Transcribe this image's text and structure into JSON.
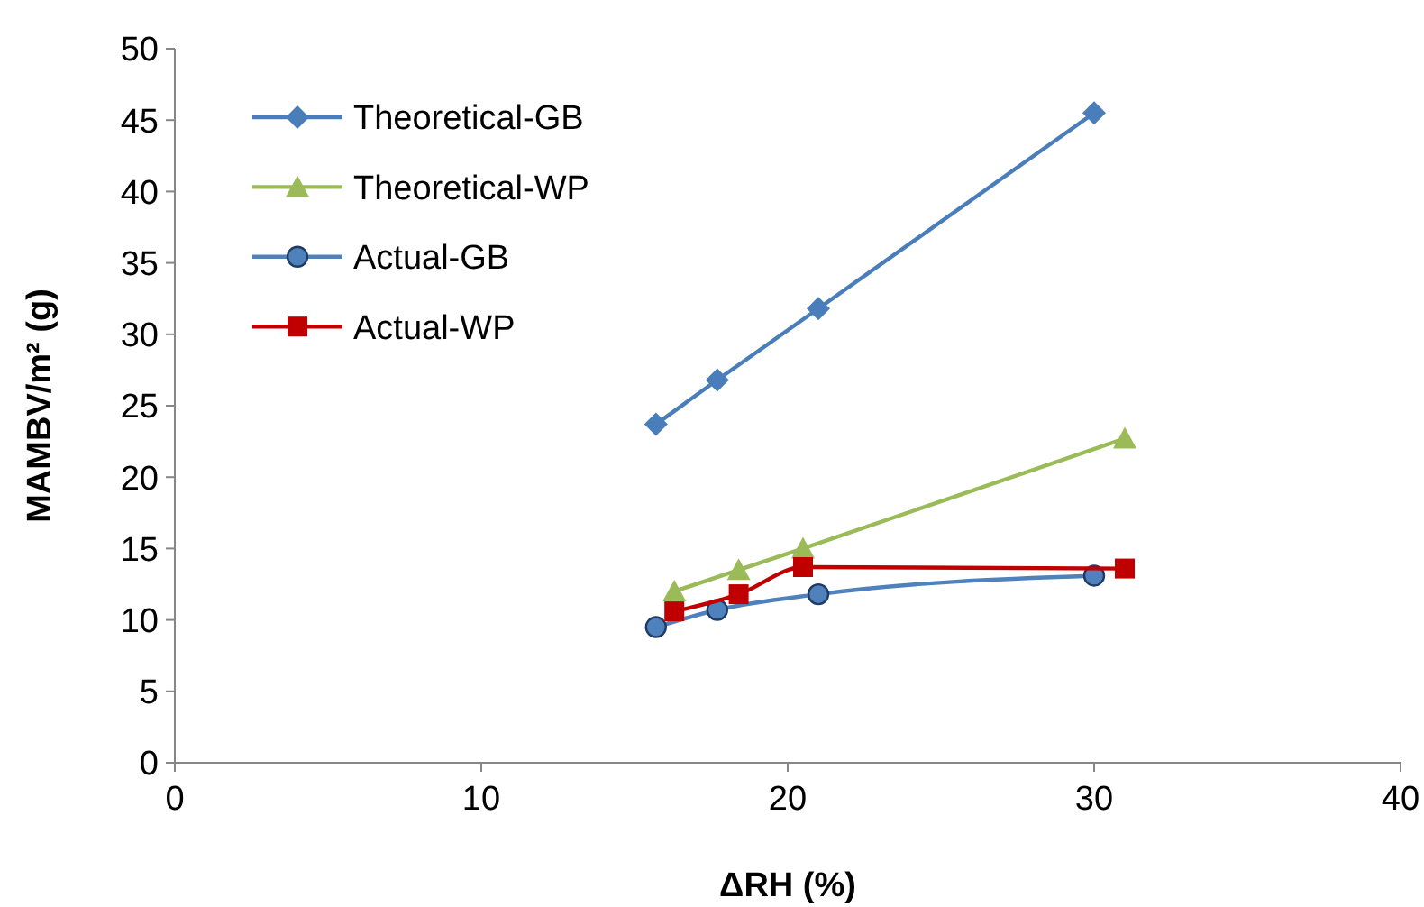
{
  "chart_data": {
    "type": "line",
    "xlabel": "ΔRH (%)",
    "ylabel": "MAMBV/m² (g)",
    "xlim": [
      0,
      40
    ],
    "xticks": [
      0,
      10,
      20,
      30,
      40
    ],
    "ylim": [
      0,
      50
    ],
    "yticks": [
      0,
      5,
      10,
      15,
      20,
      25,
      30,
      35,
      40,
      45,
      50
    ],
    "grid": false,
    "legend": "top left",
    "series": [
      {
        "name": "Theoretical-GB",
        "color": "#4a7ebb",
        "marker": "diamond",
        "x": [
          15.7,
          17.7,
          21,
          30
        ],
        "values": [
          23.7,
          26.8,
          31.8,
          45.5
        ]
      },
      {
        "name": "Theoretical-WP",
        "color": "#9bbb59",
        "marker": "triangle",
        "x": [
          16.3,
          18.4,
          20.5,
          31
        ],
        "values": [
          12,
          13.5,
          15,
          22.7
        ]
      },
      {
        "name": "Actual-GB",
        "color": "#4f81bd",
        "marker": "circle",
        "x": [
          15.7,
          17.7,
          21,
          30
        ],
        "values": [
          9.5,
          10.7,
          11.8,
          13.1
        ]
      },
      {
        "name": "Actual-WP",
        "color": "#c00000",
        "marker": "square",
        "x": [
          16.3,
          18.4,
          20.5,
          31
        ],
        "values": [
          10.6,
          11.8,
          13.7,
          13.6
        ]
      }
    ]
  }
}
